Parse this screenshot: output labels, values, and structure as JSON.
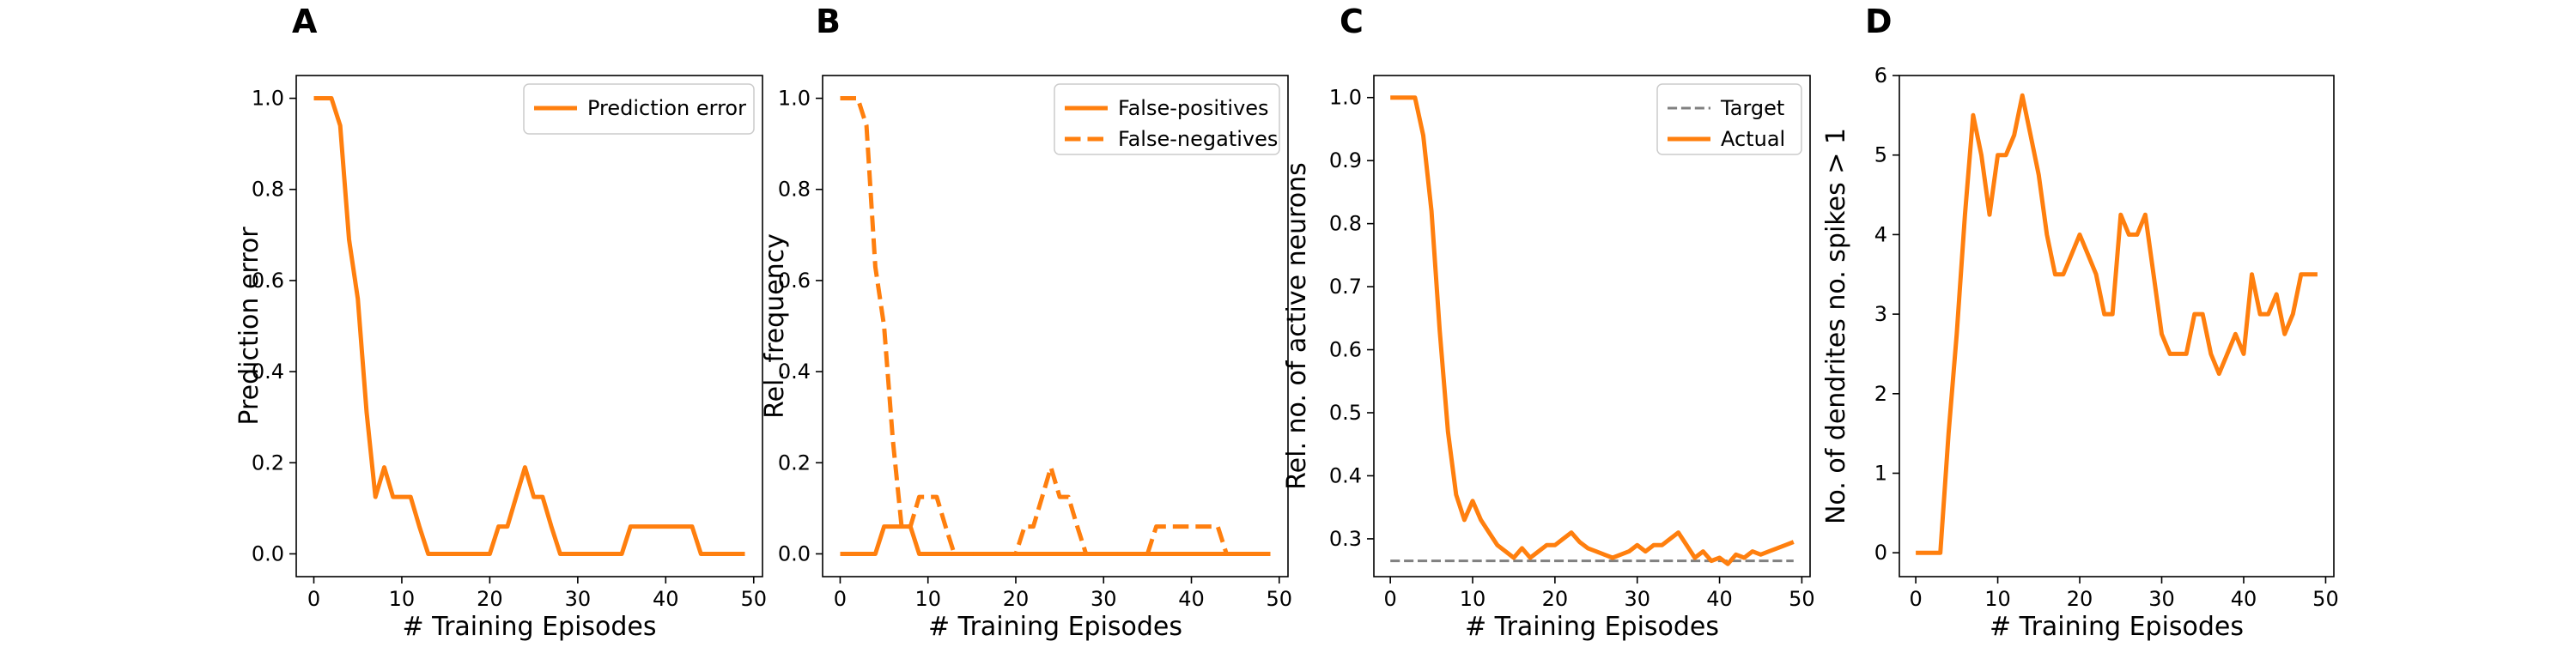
{
  "chart_data": [
    {
      "panel": "A",
      "type": "line",
      "xlabel": "# Training Episodes",
      "ylabel": "Prediction error",
      "xlim": [
        -2,
        51
      ],
      "ylim": [
        -0.05,
        1.05
      ],
      "xticks": [
        0,
        10,
        20,
        30,
        40,
        50
      ],
      "yticks": [
        0.0,
        0.2,
        0.4,
        0.6,
        0.8,
        1.0
      ],
      "ytick_decimals": 1,
      "grid": false,
      "legend": "top-right",
      "x": [
        0,
        1,
        2,
        3,
        4,
        5,
        6,
        7,
        8,
        9,
        10,
        11,
        12,
        13,
        14,
        15,
        16,
        17,
        18,
        19,
        20,
        21,
        22,
        23,
        24,
        25,
        26,
        27,
        28,
        29,
        30,
        31,
        32,
        33,
        34,
        35,
        36,
        37,
        38,
        39,
        40,
        41,
        42,
        43,
        44,
        45,
        46,
        47,
        48,
        49
      ],
      "series": [
        {
          "name": "Prediction error",
          "color": "#ff7f0e",
          "dash": "solid",
          "values": [
            1.0,
            1.0,
            1.0,
            0.94,
            0.69,
            0.56,
            0.31,
            0.125,
            0.19,
            0.125,
            0.125,
            0.125,
            0.06,
            0,
            0,
            0,
            0,
            0,
            0,
            0,
            0,
            0.06,
            0.06,
            0.125,
            0.19,
            0.125,
            0.125,
            0.06,
            0,
            0,
            0,
            0,
            0,
            0,
            0,
            0,
            0.06,
            0.06,
            0.06,
            0.06,
            0.06,
            0.06,
            0.06,
            0.06,
            0,
            0,
            0,
            0,
            0,
            0
          ]
        }
      ]
    },
    {
      "panel": "B",
      "type": "line",
      "xlabel": "# Training Episodes",
      "ylabel": "Rel. frequency",
      "xlim": [
        -2,
        51
      ],
      "ylim": [
        -0.05,
        1.05
      ],
      "xticks": [
        0,
        10,
        20,
        30,
        40,
        50
      ],
      "yticks": [
        0.0,
        0.2,
        0.4,
        0.6,
        0.8,
        1.0
      ],
      "ytick_decimals": 1,
      "grid": false,
      "legend": "top-right",
      "x": [
        0,
        1,
        2,
        3,
        4,
        5,
        6,
        7,
        8,
        9,
        10,
        11,
        12,
        13,
        14,
        15,
        16,
        17,
        18,
        19,
        20,
        21,
        22,
        23,
        24,
        25,
        26,
        27,
        28,
        29,
        30,
        31,
        32,
        33,
        34,
        35,
        36,
        37,
        38,
        39,
        40,
        41,
        42,
        43,
        44,
        45,
        46,
        47,
        48,
        49
      ],
      "series": [
        {
          "name": "False-positives",
          "color": "#ff7f0e",
          "dash": "solid",
          "values": [
            0,
            0,
            0,
            0,
            0,
            0.06,
            0.06,
            0.06,
            0.06,
            0,
            0,
            0,
            0,
            0,
            0,
            0,
            0,
            0,
            0,
            0,
            0,
            0,
            0,
            0,
            0,
            0,
            0,
            0,
            0,
            0,
            0,
            0,
            0,
            0,
            0,
            0,
            0,
            0,
            0,
            0,
            0,
            0,
            0,
            0,
            0,
            0,
            0,
            0,
            0,
            0
          ]
        },
        {
          "name": "False-negatives",
          "color": "#ff7f0e",
          "dash": "dashed",
          "values": [
            1.0,
            1.0,
            1.0,
            0.94,
            0.63,
            0.5,
            0.25,
            0.06,
            0.06,
            0.125,
            0.125,
            0.125,
            0.06,
            0,
            0,
            0,
            0,
            0,
            0,
            0,
            0,
            0.06,
            0.06,
            0.125,
            0.19,
            0.125,
            0.125,
            0.06,
            0,
            0,
            0,
            0,
            0,
            0,
            0,
            0,
            0.06,
            0.06,
            0.06,
            0.06,
            0.06,
            0.06,
            0.06,
            0.06,
            0,
            0,
            0,
            0,
            0,
            0
          ]
        }
      ]
    },
    {
      "panel": "C",
      "type": "line",
      "xlabel": "# Training Episodes",
      "ylabel": "Rel. no. of active neurons",
      "xlim": [
        -2,
        51
      ],
      "ylim": [
        0.24,
        1.035
      ],
      "xticks": [
        0,
        10,
        20,
        30,
        40,
        50
      ],
      "yticks": [
        0.3,
        0.4,
        0.5,
        0.6,
        0.7,
        0.8,
        0.9,
        1.0
      ],
      "ytick_decimals": 1,
      "grid": false,
      "legend": "top-right",
      "x": [
        0,
        1,
        2,
        3,
        4,
        5,
        6,
        7,
        8,
        9,
        10,
        11,
        12,
        13,
        14,
        15,
        16,
        17,
        18,
        19,
        20,
        21,
        22,
        23,
        24,
        25,
        26,
        27,
        28,
        29,
        30,
        31,
        32,
        33,
        34,
        35,
        36,
        37,
        38,
        39,
        40,
        41,
        42,
        43,
        44,
        45,
        46,
        47,
        48,
        49
      ],
      "series": [
        {
          "name": "Target",
          "color": "#808080",
          "dash": "dashed",
          "width": 3,
          "x": [
            0,
            49
          ],
          "values": [
            0.265,
            0.265
          ]
        },
        {
          "name": "Actual",
          "color": "#ff7f0e",
          "dash": "solid",
          "values": [
            1.0,
            1.0,
            1.0,
            1.0,
            0.94,
            0.82,
            0.63,
            0.47,
            0.37,
            0.33,
            0.36,
            0.33,
            0.31,
            0.29,
            0.28,
            0.27,
            0.285,
            0.27,
            0.28,
            0.29,
            0.29,
            0.3,
            0.31,
            0.295,
            0.285,
            0.28,
            0.275,
            0.27,
            0.275,
            0.28,
            0.29,
            0.28,
            0.29,
            0.29,
            0.3,
            0.31,
            0.29,
            0.27,
            0.28,
            0.265,
            0.27,
            0.26,
            0.275,
            0.27,
            0.28,
            0.275,
            0.28,
            0.285,
            0.29,
            0.295
          ]
        }
      ]
    },
    {
      "panel": "D",
      "type": "line",
      "xlabel": "# Training Episodes",
      "ylabel": "No. of dendrites no. spikes > 1",
      "xlim": [
        -2,
        51
      ],
      "ylim": [
        -0.3,
        6.0
      ],
      "xticks": [
        0,
        10,
        20,
        30,
        40,
        50
      ],
      "yticks": [
        0,
        1,
        2,
        3,
        4,
        5,
        6
      ],
      "ytick_decimals": 0,
      "grid": false,
      "legend": "none",
      "x": [
        0,
        1,
        2,
        3,
        4,
        5,
        6,
        7,
        8,
        9,
        10,
        11,
        12,
        13,
        14,
        15,
        16,
        17,
        18,
        19,
        20,
        21,
        22,
        23,
        24,
        25,
        26,
        27,
        28,
        29,
        30,
        31,
        32,
        33,
        34,
        35,
        36,
        37,
        38,
        39,
        40,
        41,
        42,
        43,
        44,
        45,
        46,
        47,
        48,
        49
      ],
      "series": [
        {
          "name": "",
          "color": "#ff7f0e",
          "dash": "solid",
          "values": [
            0,
            0,
            0,
            0,
            1.5,
            2.75,
            4.25,
            5.5,
            5.0,
            4.25,
            5.0,
            5.0,
            5.25,
            5.75,
            5.25,
            4.75,
            4.0,
            3.5,
            3.5,
            3.75,
            4.0,
            3.75,
            3.5,
            3.0,
            3.0,
            4.25,
            4.0,
            4.0,
            4.25,
            3.5,
            2.75,
            2.5,
            2.5,
            2.5,
            3.0,
            3.0,
            2.5,
            2.25,
            2.5,
            2.75,
            2.5,
            3.5,
            3.0,
            3.0,
            3.25,
            2.75,
            3.0,
            3.5,
            3.5,
            3.5
          ]
        }
      ]
    }
  ]
}
